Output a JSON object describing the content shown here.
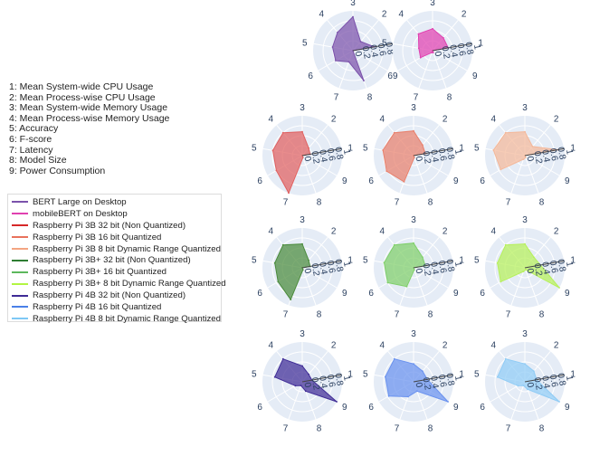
{
  "axes_legend": [
    "1: Mean System-wide CPU Usage",
    "2: Mean Process-wise CPU Usage",
    "3: Mean System-wide Memory Usage",
    "4: Mean Process-wise Memory Usage",
    "5: Accuracy",
    "6: F-score",
    "7: Latency",
    "8: Model Size",
    "9: Power Consumption"
  ],
  "legend": [
    {
      "name": "BERT Large on Desktop",
      "color": "#7b52ab"
    },
    {
      "name": "mobileBERT on Desktop",
      "color": "#e040b0"
    },
    {
      "name": "Raspberry Pi 3B 32 bit (Non Quantized)",
      "color": "#d62728"
    },
    {
      "name": "Raspberry Pi 3B 16 bit Quantized",
      "color": "#e8725c"
    },
    {
      "name": "Raspberry Pi 3B 8 bit Dynamic Range Quantized",
      "color": "#f4a582"
    },
    {
      "name": "Raspberry Pi 3B+ 32 bit (Non Quantized)",
      "color": "#2e7d32"
    },
    {
      "name": "Raspberry Pi 3B+ 16 bit Quantized",
      "color": "#5cb85c"
    },
    {
      "name": "Raspberry Pi 3B+ 8 bit Dynamic Range Quantized",
      "color": "#b2f542"
    },
    {
      "name": "Raspberry Pi 4B 32 bit (Non Quantized)",
      "color": "#3f2b96"
    },
    {
      "name": "Raspberry Pi 4B 16 bit Quantized",
      "color": "#4a80e8"
    },
    {
      "name": "Raspberry Pi 4B 8 bit Dynamic Range Quantized",
      "color": "#7ec8f5"
    }
  ],
  "chart_data": {
    "type": "radar",
    "axes": [
      "1",
      "2",
      "3",
      "4",
      "5",
      "6",
      "7",
      "8",
      "9"
    ],
    "radial_ticks": [
      "0",
      "0.2",
      "0.4",
      "0.6",
      "0.8",
      "1"
    ],
    "radial_range": [
      0,
      1
    ],
    "series": [
      {
        "name": "BERT Large on Desktop",
        "fill": "#7b52ab",
        "values": [
          0.55,
          0.3,
          0.85,
          0.6,
          0.52,
          0.5,
          0.3,
          0.8,
          0.0
        ]
      },
      {
        "name": "mobileBERT on Desktop",
        "fill": "#e040b0",
        "values": [
          0.4,
          0.42,
          0.55,
          0.55,
          0.35,
          0.35,
          0.05,
          0.05,
          0.0
        ]
      },
      {
        "name": "Raspberry Pi 3B 32 bit (Non Quantized)",
        "fill": "#e06060",
        "values": [
          0.2,
          0.25,
          0.6,
          0.75,
          0.75,
          0.75,
          1.0,
          0.05,
          0.0
        ]
      },
      {
        "name": "Raspberry Pi 3B 16 bit Quantized",
        "fill": "#e8806c",
        "values": [
          0.3,
          0.35,
          0.62,
          0.75,
          0.78,
          0.78,
          0.7,
          0.05,
          0.0
        ]
      },
      {
        "name": "Raspberry Pi 3B 8 bit Dynamic Range Quantized",
        "fill": "#f4b89a",
        "values": [
          0.85,
          0.3,
          0.6,
          0.75,
          0.8,
          0.7,
          0.1,
          0.05,
          0.0
        ]
      },
      {
        "name": "Raspberry Pi 3B+ 32 bit (Non Quantized)",
        "fill": "#4a8a3c",
        "values": [
          0.2,
          0.25,
          0.6,
          0.75,
          0.7,
          0.7,
          0.85,
          0.05,
          0.0
        ]
      },
      {
        "name": "Raspberry Pi 3B+ 16 bit Quantized",
        "fill": "#7fcf6a",
        "values": [
          0.3,
          0.35,
          0.62,
          0.75,
          0.75,
          0.75,
          0.5,
          0.05,
          0.0
        ]
      },
      {
        "name": "Raspberry Pi 3B+ 8 bit Dynamic Range Quantized",
        "fill": "#b6f05a",
        "values": [
          0.4,
          0.35,
          0.6,
          0.75,
          0.7,
          0.7,
          0.1,
          0.05,
          1.0
        ]
      },
      {
        "name": "Raspberry Pi 4B 32 bit (Non Quantized)",
        "fill": "#3f2b96",
        "values": [
          0.25,
          0.25,
          0.4,
          0.75,
          0.7,
          0.2,
          0.1,
          0.25,
          1.0
        ]
      },
      {
        "name": "Raspberry Pi 4B 16 bit Quantized",
        "fill": "#6a92ef",
        "values": [
          0.35,
          0.35,
          0.45,
          0.75,
          0.72,
          0.72,
          0.4,
          0.25,
          1.0
        ]
      },
      {
        "name": "Raspberry Pi 4B 8 bit Dynamic Range Quantized",
        "fill": "#90ccf5",
        "values": [
          0.3,
          0.35,
          0.45,
          0.75,
          0.7,
          0.2,
          0.1,
          0.2,
          1.0
        ]
      }
    ]
  }
}
